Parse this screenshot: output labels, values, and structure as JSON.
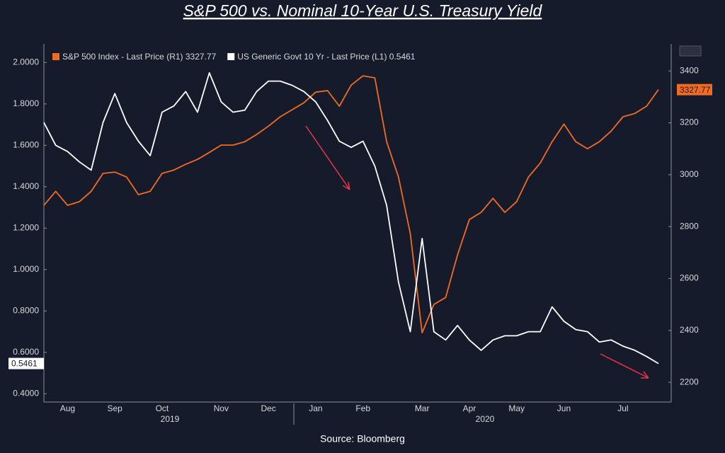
{
  "chart_data": {
    "type": "line",
    "title": "S&P 500 vs. Nominal 10-Year U.S. Treasury Yield",
    "source": "Source: Bloomberg",
    "categories": [
      null,
      null,
      "Aug",
      null,
      null,
      null,
      "Sep",
      null,
      null,
      null,
      "Oct",
      null,
      null,
      null,
      null,
      "Nov",
      null,
      null,
      null,
      "Dec",
      null,
      null,
      null,
      "Jan",
      null,
      null,
      null,
      "Feb",
      null,
      null,
      null,
      null,
      "Mar",
      null,
      null,
      null,
      "Apr",
      null,
      null,
      null,
      "May",
      null,
      null,
      null,
      "Jun",
      null,
      null,
      null,
      null,
      "Jul",
      null,
      null,
      null
    ],
    "x_group_labels": [
      "2019",
      "2020"
    ],
    "series": [
      {
        "name": "S&P 500 Index - Last Price (R1) 3327.77",
        "color": "#f26b21",
        "axis": "y2",
        "values": [
          2882,
          2936,
          2882,
          2896,
          2936,
          3005,
          3010,
          2991,
          2923,
          2936,
          3005,
          3018,
          3040,
          3059,
          3086,
          3114,
          3114,
          3127,
          3155,
          3187,
          3223,
          3250,
          3277,
          3318,
          3324,
          3264,
          3345,
          3381,
          3373,
          3127,
          2991,
          2773,
          2391,
          2500,
          2527,
          2691,
          2827,
          2855,
          2909,
          2855,
          2896,
          2991,
          3045,
          3127,
          3195,
          3127,
          3100,
          3127,
          3168,
          3223,
          3236,
          3264,
          3327.77
        ]
      },
      {
        "name": "US Generic Govt 10 Yr - Last Price (L1) 0.5461",
        "color": "#ffffff",
        "values": [
          1.71,
          1.6,
          1.57,
          1.52,
          1.48,
          1.71,
          1.85,
          1.71,
          1.62,
          1.55,
          1.76,
          1.79,
          1.86,
          1.76,
          1.95,
          1.81,
          1.76,
          1.77,
          1.86,
          1.91,
          1.91,
          1.89,
          1.86,
          1.81,
          1.72,
          1.62,
          1.59,
          1.62,
          1.5,
          1.31,
          0.94,
          0.7,
          1.15,
          0.7,
          0.66,
          0.73,
          0.66,
          0.61,
          0.66,
          0.68,
          0.68,
          0.7,
          0.7,
          0.82,
          0.75,
          0.71,
          0.7,
          0.65,
          0.66,
          0.63,
          0.61,
          0.58,
          0.5461
        ]
      }
    ],
    "ylim": [
      0.36,
      2.09
    ],
    "yticks": [
      {
        "value": 0.4,
        "label": "0.4000"
      },
      {
        "value": 0.6,
        "label": "0.6000"
      },
      {
        "value": 0.8,
        "label": "0.8000"
      },
      {
        "value": 1.0,
        "label": "1.0000"
      },
      {
        "value": 1.2,
        "label": "1.2000"
      },
      {
        "value": 1.4,
        "label": "1.4000"
      },
      {
        "value": 1.6,
        "label": "1.6000"
      },
      {
        "value": 1.8,
        "label": "1.8000"
      },
      {
        "value": 2.0,
        "label": "2.0000"
      }
    ],
    "y2lim": [
      2124,
      3504
    ],
    "y2ticks": [
      2200,
      2400,
      2600,
      2800,
      3000,
      3200,
      3400
    ],
    "grid": false
  }
}
